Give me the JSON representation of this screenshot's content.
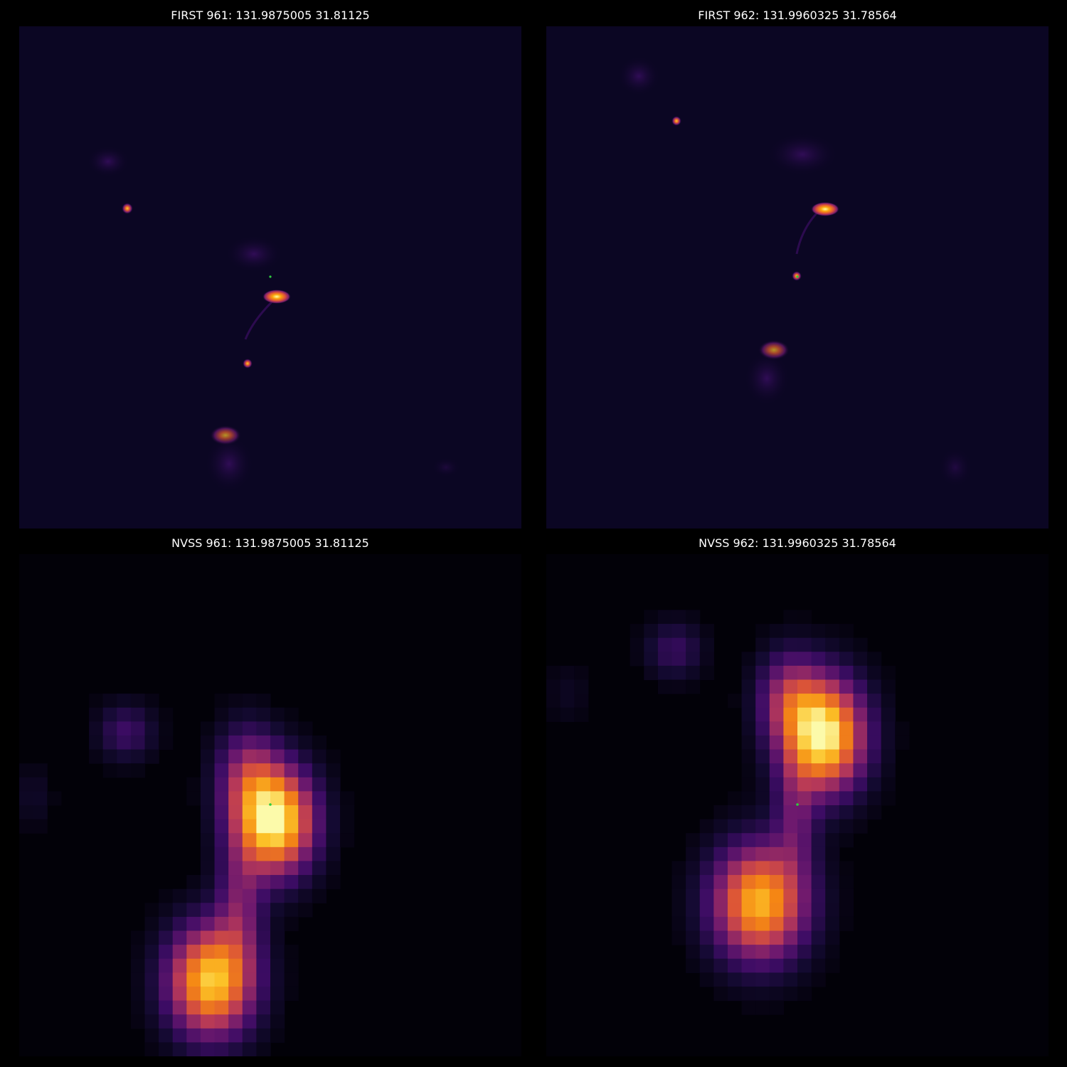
{
  "panels": [
    {
      "title": "FIRST 961: 131.9875005 31.81125",
      "survey": "FIRST",
      "source_id": "961",
      "ra": "131.9875005",
      "dec": "31.81125",
      "colormap": "inferno"
    },
    {
      "title": "FIRST 962: 131.9960325 31.78564",
      "survey": "FIRST",
      "source_id": "962",
      "ra": "131.9960325",
      "dec": "31.78564",
      "colormap": "inferno"
    },
    {
      "title": "NVSS 961: 131.9875005 31.81125",
      "survey": "NVSS",
      "source_id": "961",
      "ra": "131.9875005",
      "dec": "31.81125",
      "colormap": "inferno"
    },
    {
      "title": "NVSS 962: 131.9960325 31.78564",
      "survey": "NVSS",
      "source_id": "962",
      "ra": "131.9960325",
      "dec": "31.78564",
      "colormap": "inferno"
    }
  ],
  "colors": {
    "background": "#000000",
    "first_background": "#0b0623",
    "nvss_background": "#020108",
    "marker": "#2ecc40",
    "title_text": "#ffffff"
  }
}
